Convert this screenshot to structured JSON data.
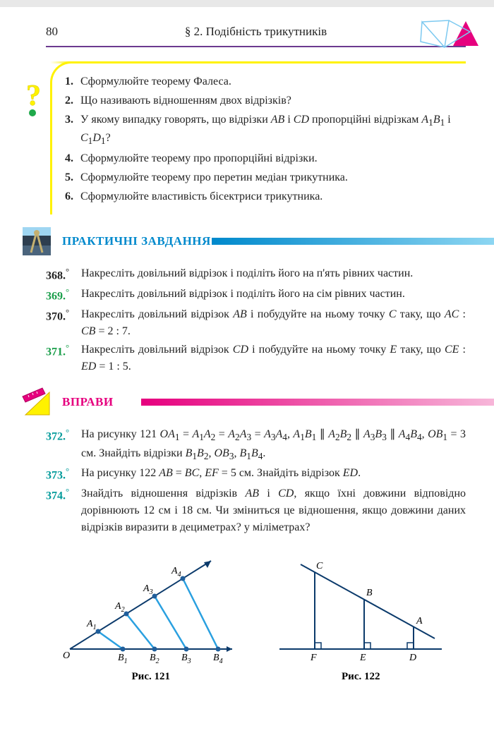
{
  "header": {
    "page_num": "80",
    "section": "§ 2. Подібність трикутників",
    "line_color": "#6b3a8f"
  },
  "q_icon": {
    "main_color": "#fff200",
    "accent_color": "#1fa94b"
  },
  "questions": {
    "border_color": "#fff200",
    "items": [
      {
        "n": "1.",
        "text": "Сформулюйте теорему Фалеса."
      },
      {
        "n": "2.",
        "text": "Що називають відношенням двох відрізків?"
      },
      {
        "n": "3.",
        "text": "У якому випадку говорять, що відрізки <i>AB</i> і <i>CD</i> пропорційні відрізкам <i>A</i><sub>1</sub><i>B</i><sub>1</sub> і <i>C</i><sub>1</sub><i>D</i><sub>1</sub>?"
      },
      {
        "n": "4.",
        "text": "Сформулюйте теорему про пропорційні відрізки."
      },
      {
        "n": "5.",
        "text": "Сформулюйте теорему про перетин медіан трикутника."
      },
      {
        "n": "6.",
        "text": "Сформулюйте властивість бісектриси трикутника."
      }
    ]
  },
  "sections": {
    "practical": {
      "title": "ПРАКТИЧНІ ЗАВДАННЯ",
      "color": "#0089cc",
      "bar_from": "#0089cc",
      "bar_to": "#8dd6f2"
    },
    "exercises": {
      "title": "ВПРАВИ",
      "color": "#e6007e",
      "bar_from": "#e6007e",
      "bar_to": "#f7b6d9"
    }
  },
  "practical_tasks": [
    {
      "num": "368.",
      "cls": "",
      "text": "Накресліть довільний відрізок і поділіть його на п'ять рівних частин."
    },
    {
      "num": "369.",
      "cls": "green",
      "text": "Накресліть довільний відрізок і поділіть його на сім рівних частин."
    },
    {
      "num": "370.",
      "cls": "",
      "text": "Накресліть довільний відрізок <i>AB</i> і побудуйте на ньому точку <i>C</i> таку, що <i>AC</i> : <i>CB</i> = 2 : 7."
    },
    {
      "num": "371.",
      "cls": "green",
      "text": "Накресліть довільний відрізок <i>CD</i> і побудуйте на ньому точку <i>E</i> таку, що <i>CE</i> : <i>ED</i> = 1 : 5."
    }
  ],
  "exercise_tasks": [
    {
      "num": "372.",
      "cls": "teal",
      "text": "На рисунку 121 <i>OA</i><sub>1</sub> = <i>A</i><sub>1</sub><i>A</i><sub>2</sub> = <i>A</i><sub>2</sub><i>A</i><sub>3</sub> = <i>A</i><sub>3</sub><i>A</i><sub>4</sub>, <i>A</i><sub>1</sub><i>B</i><sub>1</sub> ∥ <i>A</i><sub>2</sub><i>B</i><sub>2</sub> ∥ <i>A</i><sub>3</sub><i>B</i><sub>3</sub> ∥ <i>A</i><sub>4</sub><i>B</i><sub>4</sub>, <i>OB</i><sub>1</sub> = 3 см. Знайдіть відрізки <i>B</i><sub>1</sub><i>B</i><sub>2</sub>, <i>OB</i><sub>3</sub>, <i>B</i><sub>1</sub><i>B</i><sub>4</sub>."
    },
    {
      "num": "373.",
      "cls": "teal",
      "text": "На рисунку 122 <i>AB</i> = <i>BC</i>, <i>EF</i> = 5 см. Знайдіть відрізок <i>ED</i>."
    },
    {
      "num": "374.",
      "cls": "teal",
      "text": "Знайдіть відношення відрізків <i>AB</i> і <i>CD</i>, якщо їхні довжини відповідно дорівнюють 12 см і 18 см. Чи зміниться це відношення, якщо довжини даних відрізків виразити в дециметрах? у міліметрах?"
    }
  ],
  "figures": {
    "f121": {
      "label": "Рис. 121",
      "line_main": "#0b3a6b",
      "line_parallel": "#2aa0e0",
      "dots": "#1f5e9b",
      "arrow": "#0b3a6b"
    },
    "f122": {
      "label": "Рис. 122",
      "line_main": "#0b3a6b",
      "vertical": "#0b3a6b",
      "sq": "#0b3a6b"
    }
  },
  "header_deco": {
    "tri_fill": "#e6007e",
    "poly_stroke": "#7cc9f0"
  }
}
